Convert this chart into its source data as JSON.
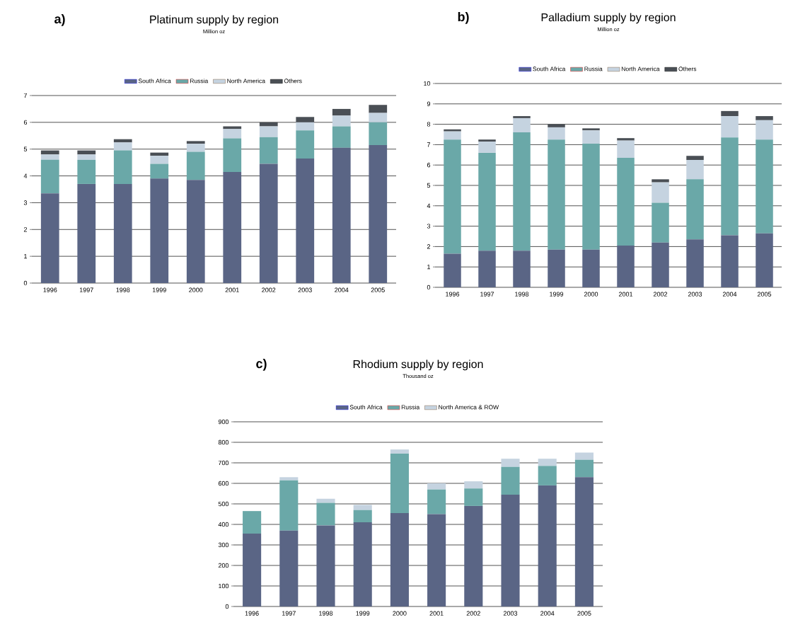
{
  "chart_data": [
    {
      "type": "bar",
      "stacked": true,
      "title": "Platinum supply by region",
      "subtitle": "Million oz",
      "annotations": [
        "a)"
      ],
      "categories": [
        "1996",
        "1997",
        "1998",
        "1999",
        "2000",
        "2001",
        "2002",
        "2003",
        "2004",
        "2005"
      ],
      "series": [
        {
          "name": "South Africa",
          "color": "#5a6585",
          "values": [
            3.35,
            3.7,
            3.7,
            3.9,
            3.85,
            4.15,
            4.45,
            4.65,
            5.05,
            5.15
          ]
        },
        {
          "name": "Russia",
          "color": "#6aa8a8",
          "values": [
            1.25,
            0.9,
            1.25,
            0.55,
            1.05,
            1.25,
            1.0,
            1.05,
            0.8,
            0.85
          ]
        },
        {
          "name": "North America",
          "color": "#c5d3e0",
          "values": [
            0.2,
            0.2,
            0.3,
            0.3,
            0.3,
            0.35,
            0.4,
            0.3,
            0.4,
            0.35
          ]
        },
        {
          "name": "Others",
          "color": "#4a4f55",
          "values": [
            0.15,
            0.15,
            0.12,
            0.12,
            0.1,
            0.1,
            0.15,
            0.2,
            0.25,
            0.3
          ]
        }
      ],
      "ylim": [
        0,
        7
      ],
      "yticks": [
        0,
        1,
        2,
        3,
        4,
        5,
        6,
        7
      ],
      "grid": "y",
      "legend": "top"
    },
    {
      "type": "bar",
      "stacked": true,
      "title": "Palladium supply by region",
      "subtitle": "Million oz",
      "annotations": [
        "b)"
      ],
      "categories": [
        "1996",
        "1997",
        "1998",
        "1999",
        "2000",
        "2001",
        "2002",
        "2003",
        "2004",
        "2005"
      ],
      "series": [
        {
          "name": "South Africa",
          "color": "#5a6585",
          "values": [
            1.65,
            1.8,
            1.8,
            1.85,
            1.85,
            2.05,
            2.2,
            2.35,
            2.55,
            2.65
          ]
        },
        {
          "name": "Russia",
          "color": "#6aa8a8",
          "values": [
            5.6,
            4.8,
            5.8,
            5.4,
            5.2,
            4.3,
            1.95,
            2.95,
            4.8,
            4.6
          ]
        },
        {
          "name": "North America",
          "color": "#c5d3e0",
          "values": [
            0.4,
            0.55,
            0.7,
            0.6,
            0.65,
            0.85,
            1.0,
            0.95,
            1.05,
            0.95
          ]
        },
        {
          "name": "Others",
          "color": "#4a4f55",
          "values": [
            0.1,
            0.1,
            0.1,
            0.15,
            0.1,
            0.12,
            0.15,
            0.2,
            0.25,
            0.2
          ]
        }
      ],
      "ylim": [
        0,
        10
      ],
      "yticks": [
        0,
        1,
        2,
        3,
        4,
        5,
        6,
        7,
        8,
        9,
        10
      ],
      "grid": "y",
      "legend": "top"
    },
    {
      "type": "bar",
      "stacked": true,
      "title": "Rhodium supply by region",
      "subtitle": "Thousand oz",
      "annotations": [
        "c)"
      ],
      "categories": [
        "1996",
        "1997",
        "1998",
        "1999",
        "2000",
        "2001",
        "2002",
        "2003",
        "2004",
        "2005"
      ],
      "series": [
        {
          "name": "South Africa",
          "color": "#5a6585",
          "values": [
            355,
            370,
            395,
            410,
            455,
            450,
            490,
            545,
            590,
            630
          ]
        },
        {
          "name": "Russia",
          "color": "#6aa8a8",
          "values": [
            110,
            245,
            110,
            60,
            290,
            120,
            85,
            135,
            95,
            85
          ]
        },
        {
          "name": "North America & ROW",
          "color": "#c5d3e0",
          "values": [
            0,
            15,
            20,
            25,
            20,
            30,
            35,
            40,
            35,
            35
          ]
        }
      ],
      "ylim": [
        0,
        900
      ],
      "yticks": [
        0,
        100,
        200,
        300,
        400,
        500,
        600,
        700,
        800,
        900
      ],
      "grid": "y",
      "legend": "top"
    }
  ]
}
